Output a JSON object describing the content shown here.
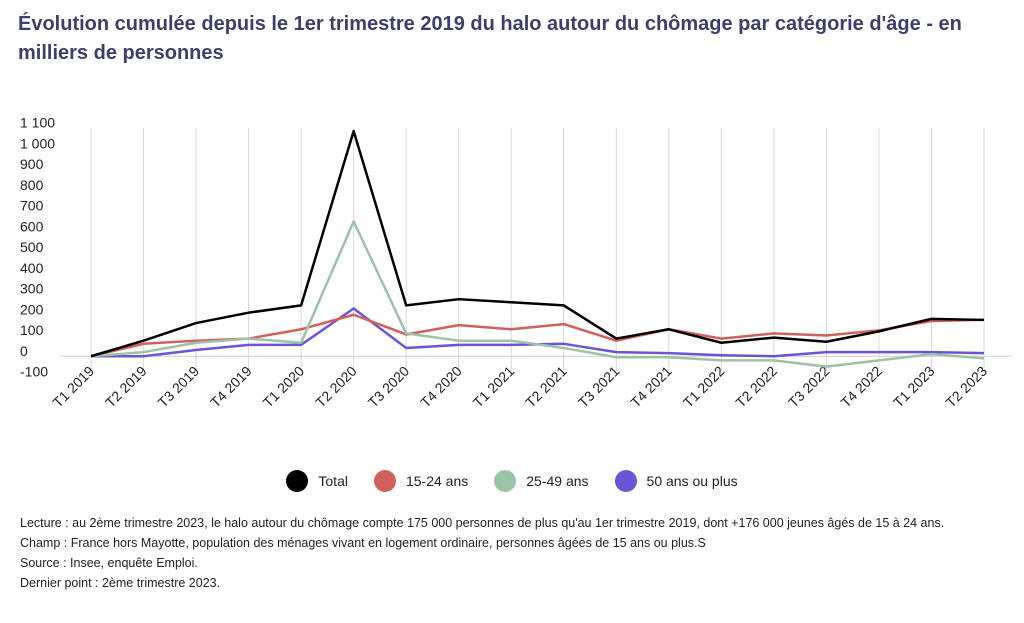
{
  "chart_data": {
    "type": "line",
    "title": "Évolution cumulée depuis le 1er trimestre 2019 du halo autour du chômage par catégorie d'âge - en milliers de personnes",
    "categories": [
      "T1 2019",
      "T2 2019",
      "T3 2019",
      "T4 2019",
      "T1 2020",
      "T2 2020",
      "T3 2020",
      "T4 2020",
      "T1 2021",
      "T2 2021",
      "T3 2021",
      "T4 2021",
      "T1 2022",
      "T2 2022",
      "T3 2022",
      "T4 2022",
      "T1 2023",
      "T2 2023"
    ],
    "series": [
      {
        "name": "Total",
        "color": "#000000",
        "values": [
          0,
          75,
          160,
          210,
          245,
          1085,
          245,
          275,
          260,
          245,
          85,
          130,
          65,
          90,
          70,
          120,
          180,
          175
        ]
      },
      {
        "name": "15-24 ans",
        "color": "#d0605e",
        "values": [
          0,
          60,
          75,
          85,
          130,
          200,
          105,
          150,
          130,
          155,
          75,
          130,
          85,
          110,
          100,
          125,
          170,
          176
        ]
      },
      {
        "name": "25-49 ans",
        "color": "#9dc3a6",
        "values": [
          0,
          20,
          65,
          85,
          65,
          650,
          110,
          75,
          75,
          40,
          -5,
          -5,
          -20,
          -20,
          -50,
          -20,
          10,
          -10
        ]
      },
      {
        "name": "50 ans ou plus",
        "color": "#6b55d6",
        "values": [
          0,
          0,
          30,
          55,
          55,
          230,
          40,
          55,
          55,
          60,
          20,
          15,
          5,
          0,
          20,
          20,
          20,
          15
        ]
      }
    ],
    "ylim": [
      -100,
      1100
    ],
    "yticks": [
      -100,
      0,
      100,
      200,
      300,
      400,
      500,
      600,
      700,
      800,
      900,
      {
        "value": 1000,
        "label": "1 000"
      },
      {
        "value": 1100,
        "label": "1 100"
      }
    ],
    "grid": true,
    "notes": [
      "Lecture : au 2ème trimestre 2023, le halo autour du chômage compte 175 000 personnes de plus qu'au 1er trimestre 2019, dont +176 000 jeunes âgés de 15 à 24 ans.",
      "Champ : France hors Mayotte, population des ménages vivant en logement ordinaire, personnes âgées de 15 ans ou plus.S",
      "Source : Insee, enquête Emploi.",
      "Dernier point : 2ème trimestre 2023."
    ]
  }
}
